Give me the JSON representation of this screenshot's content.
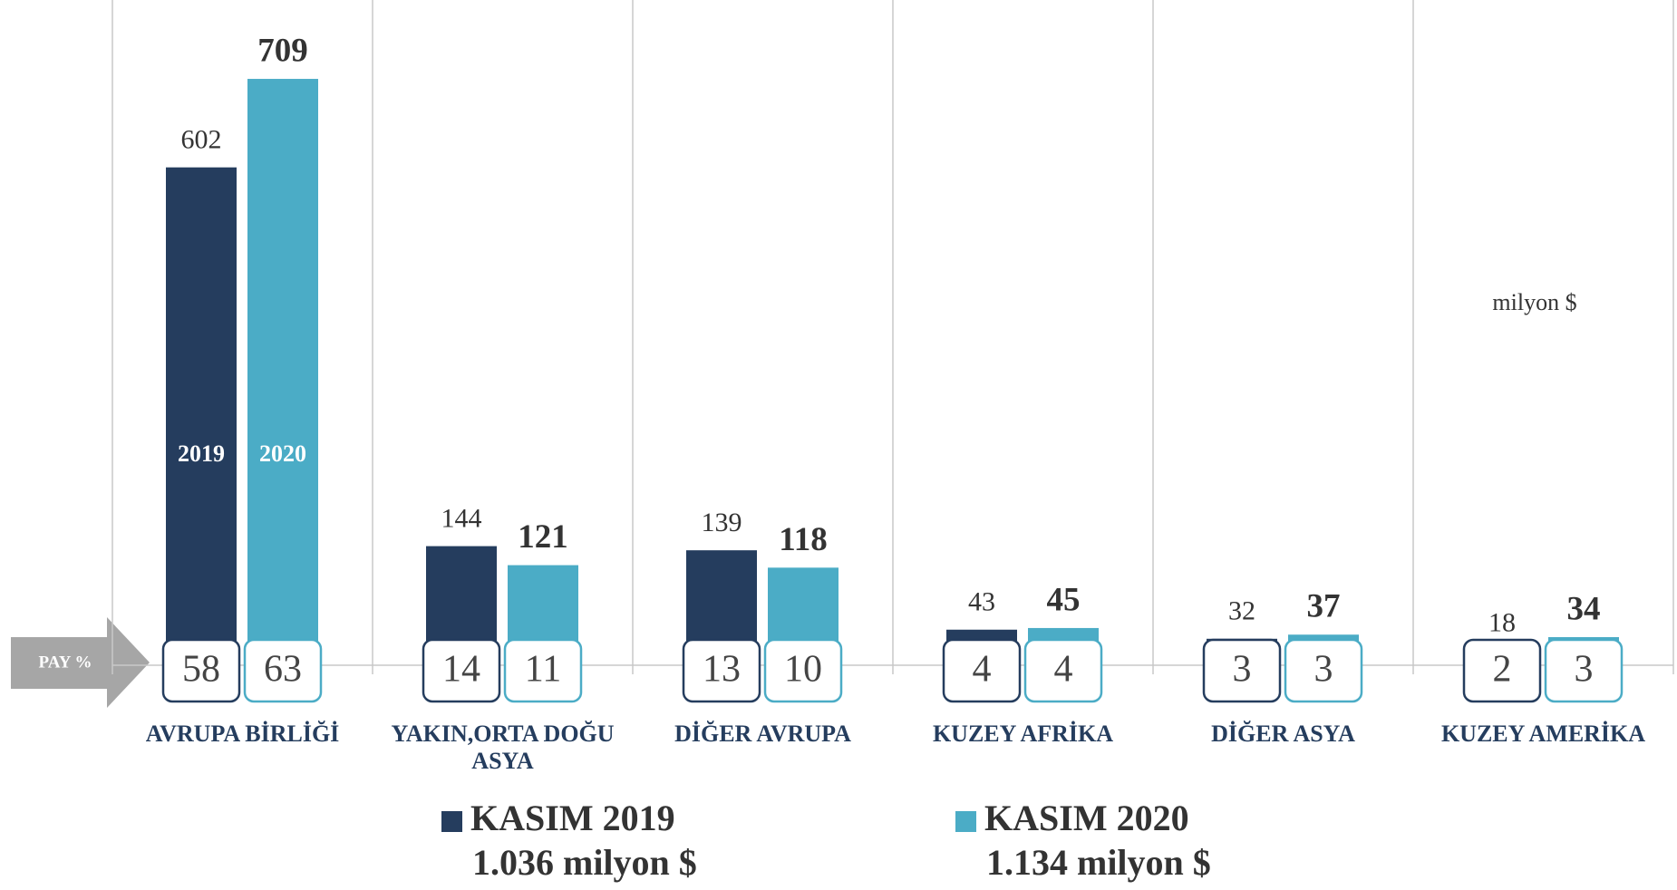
{
  "chart_data": {
    "type": "bar",
    "categories": [
      "AVRUPA BİRLİĞİ",
      "YAKIN,ORTA DOĞU ASYA",
      "DİĞER AVRUPA",
      "KUZEY AFRİKA",
      "DİĞER ASYA",
      "KUZEY AMERİKA"
    ],
    "series": [
      {
        "name": "KASIM 2019",
        "color": "#253d5e",
        "label": "2019",
        "total": "1.036 milyon $",
        "values": [
          602,
          144,
          139,
          43,
          32,
          18
        ],
        "shares": [
          58,
          14,
          13,
          4,
          3,
          2
        ]
      },
      {
        "name": "KASIM 2020",
        "color": "#4bacc6",
        "label": "2020",
        "total": "1.134 milyon $",
        "values": [
          709,
          121,
          118,
          45,
          37,
          34
        ],
        "shares": [
          63,
          11,
          10,
          4,
          3,
          3
        ]
      }
    ],
    "share_label": "PAY %",
    "unit": "milyon $",
    "ylim": [
      0,
      800
    ]
  }
}
